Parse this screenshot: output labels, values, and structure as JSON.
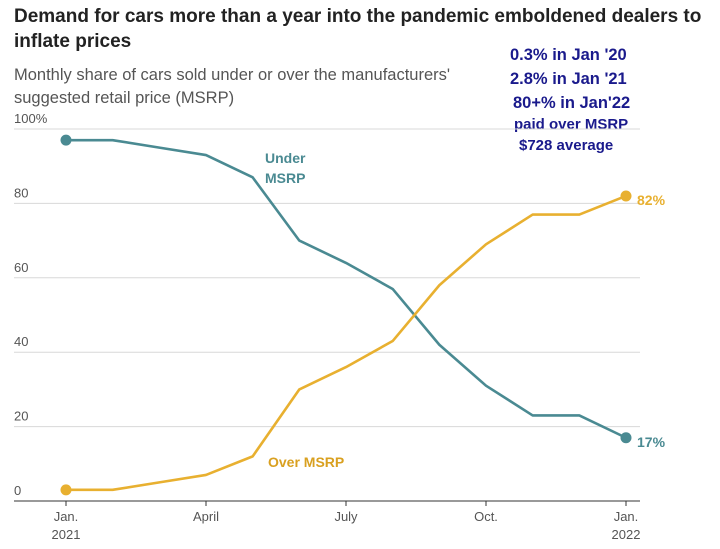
{
  "title": "Demand for cars more than a year into the pandemic emboldened dealers to inflate prices",
  "subtitle": "Monthly share of cars sold under or over the manufacturers' suggested retail price (MSRP)",
  "notes": [
    "0.3% in Jan '20",
    "2.8% in Jan '21",
    "80+% in Jan'22",
    "paid over MSRP",
    "$728 average"
  ],
  "colors": {
    "under": "#4a8a92",
    "over": "#e8b030",
    "grid": "#d8d8d8",
    "note": "#1a1a8c"
  },
  "chart_data": {
    "type": "line",
    "title": "Demand for cars more than a year into the pandemic emboldened dealers to inflate prices",
    "subtitle": "Monthly share of cars sold under or over the manufacturers' suggested retail price (MSRP)",
    "x": [
      "2021-01",
      "2021-02",
      "2021-03",
      "2021-04",
      "2021-05",
      "2021-06",
      "2021-07",
      "2021-08",
      "2021-09",
      "2021-10",
      "2021-11",
      "2021-12",
      "2022-01"
    ],
    "xticks": [
      {
        "month": "2021-01",
        "line1": "Jan.",
        "line2": "2021"
      },
      {
        "month": "2021-04",
        "line1": "April",
        "line2": ""
      },
      {
        "month": "2021-07",
        "line1": "July",
        "line2": ""
      },
      {
        "month": "2021-10",
        "line1": "Oct.",
        "line2": ""
      },
      {
        "month": "2022-01",
        "line1": "Jan.",
        "line2": "2022"
      }
    ],
    "yticks": [
      "100%",
      "80",
      "60",
      "40",
      "20",
      "0"
    ],
    "ylim": [
      0,
      100
    ],
    "grid": true,
    "series": [
      {
        "key": "under",
        "name": "Under MSRP",
        "label_lines": [
          "Under",
          "MSRP"
        ],
        "values": [
          97,
          97,
          95,
          93,
          87,
          70,
          64,
          57,
          42,
          31,
          23,
          23,
          17
        ],
        "end_label": "17%"
      },
      {
        "key": "over",
        "name": "Over MSRP",
        "label_lines": [
          "Over MSRP"
        ],
        "values": [
          3,
          3,
          5,
          7,
          12,
          30,
          36,
          43,
          58,
          69,
          77,
          77,
          82
        ],
        "end_label": "82%"
      }
    ]
  }
}
